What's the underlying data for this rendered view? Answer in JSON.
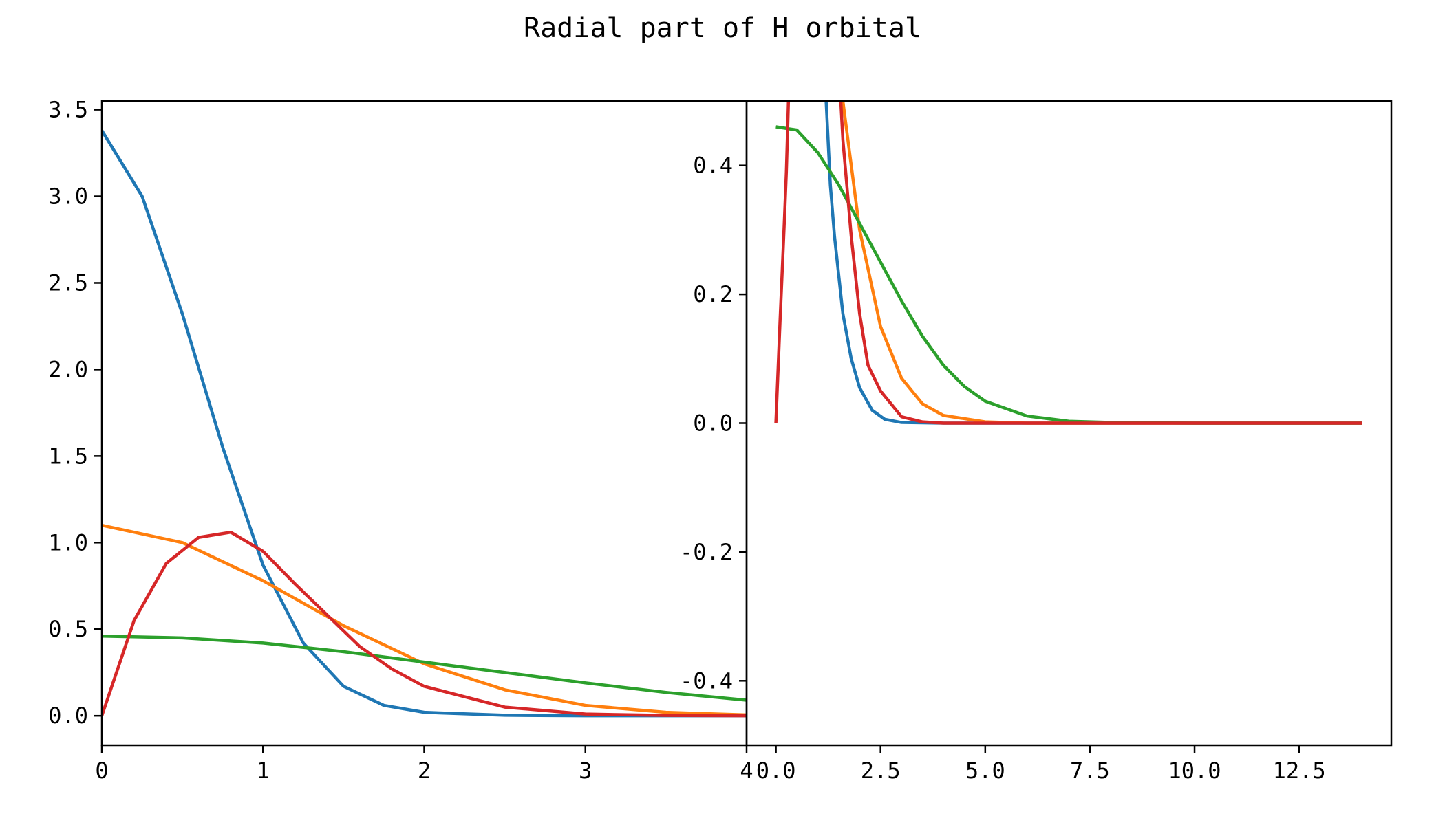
{
  "chart_data": [
    {
      "type": "line",
      "panel": "left",
      "title": "Radial part of H orbital",
      "xlabel": "",
      "ylabel": "",
      "xlim": [
        0,
        4
      ],
      "ylim": [
        -0.17,
        3.55
      ],
      "xticks": [
        0,
        1,
        2,
        3,
        4
      ],
      "xtick_labels": [
        "0",
        "1",
        "2",
        "3",
        "4"
      ],
      "yticks": [
        0.0,
        0.5,
        1.0,
        1.5,
        2.0,
        2.5,
        3.0,
        3.5
      ],
      "ytick_labels": [
        "0.0",
        "0.5",
        "1.0",
        "1.5",
        "2.0",
        "2.5",
        "3.0",
        "3.5"
      ],
      "grid": false,
      "series": [
        {
          "name": "blue",
          "color": "#1f77b4",
          "x": [
            0,
            0.25,
            0.5,
            0.75,
            1.0,
            1.25,
            1.5,
            1.75,
            2.0,
            2.5,
            3.0,
            3.5,
            4.0
          ],
          "y": [
            3.38,
            3.0,
            2.32,
            1.55,
            0.87,
            0.42,
            0.17,
            0.06,
            0.02,
            0.003,
            0.0,
            0.0,
            0.0
          ]
        },
        {
          "name": "orange",
          "color": "#ff7f0e",
          "x": [
            0,
            0.5,
            1.0,
            1.5,
            2.0,
            2.5,
            3.0,
            3.5,
            4.0
          ],
          "y": [
            1.1,
            1.0,
            0.78,
            0.52,
            0.3,
            0.15,
            0.06,
            0.02,
            0.005
          ]
        },
        {
          "name": "green",
          "color": "#2ca02c",
          "x": [
            0,
            0.5,
            1.0,
            1.5,
            2.0,
            2.5,
            3.0,
            3.5,
            4.0
          ],
          "y": [
            0.46,
            0.45,
            0.42,
            0.37,
            0.31,
            0.25,
            0.19,
            0.135,
            0.09
          ]
        },
        {
          "name": "red",
          "color": "#d62728",
          "x": [
            0,
            0.2,
            0.4,
            0.6,
            0.8,
            1.0,
            1.2,
            1.4,
            1.6,
            1.8,
            2.0,
            2.5,
            3.0,
            3.5,
            4.0
          ],
          "y": [
            0.0,
            0.55,
            0.88,
            1.03,
            1.06,
            0.95,
            0.76,
            0.58,
            0.4,
            0.27,
            0.17,
            0.05,
            0.01,
            0.002,
            0.0
          ]
        }
      ]
    },
    {
      "type": "line",
      "panel": "right",
      "xlabel": "",
      "ylabel": "",
      "xlim": [
        -0.7,
        14.7
      ],
      "ylim": [
        -0.5,
        0.5
      ],
      "xticks": [
        0.0,
        2.5,
        5.0,
        7.5,
        10.0,
        12.5
      ],
      "xtick_labels": [
        "0.0",
        "2.5",
        "5.0",
        "7.5",
        "10.0",
        "12.5"
      ],
      "yticks": [
        -0.4,
        -0.2,
        0.0,
        0.2,
        0.4
      ],
      "ytick_labels": [
        "-0.4",
        "-0.2",
        "0.0",
        "0.2",
        "0.4"
      ],
      "grid": false,
      "series": [
        {
          "name": "blue",
          "color": "#1f77b4",
          "x": [
            1.2,
            1.3,
            1.4,
            1.6,
            1.8,
            2.0,
            2.3,
            2.6,
            3.0,
            4.0,
            14.0
          ],
          "y": [
            0.5,
            0.37,
            0.29,
            0.17,
            0.1,
            0.055,
            0.02,
            0.006,
            0.001,
            0.0,
            0.0
          ]
        },
        {
          "name": "orange",
          "color": "#ff7f0e",
          "x": [
            1.6,
            1.8,
            2.0,
            2.5,
            3.0,
            3.5,
            4.0,
            5.0,
            6.0,
            14.0
          ],
          "y": [
            0.5,
            0.4,
            0.3,
            0.15,
            0.07,
            0.03,
            0.012,
            0.002,
            0.0,
            0.0
          ]
        },
        {
          "name": "green",
          "color": "#2ca02c",
          "x": [
            0,
            0.5,
            1.0,
            1.5,
            2.0,
            2.5,
            3.0,
            3.5,
            4.0,
            4.5,
            5.0,
            6.0,
            7.0,
            8.0,
            10.0,
            14.0
          ],
          "y": [
            0.46,
            0.455,
            0.42,
            0.37,
            0.31,
            0.25,
            0.19,
            0.135,
            0.09,
            0.057,
            0.034,
            0.011,
            0.003,
            0.001,
            0.0,
            0.0
          ]
        },
        {
          "name": "red",
          "color": "#d62728",
          "x": [
            0,
            0.1,
            0.2,
            0.25,
            0.3
          ],
          "y": [
            0.0,
            0.16,
            0.31,
            0.39,
            0.5
          ]
        },
        {
          "name": "red",
          "color": "#d62728",
          "x": [
            1.55,
            1.6,
            1.8,
            2.0,
            2.2,
            2.5,
            3.0,
            3.5,
            4.0,
            5.0,
            14.0
          ],
          "y": [
            0.5,
            0.44,
            0.29,
            0.17,
            0.09,
            0.05,
            0.01,
            0.002,
            0.0,
            0.0,
            0.0
          ]
        }
      ]
    }
  ]
}
